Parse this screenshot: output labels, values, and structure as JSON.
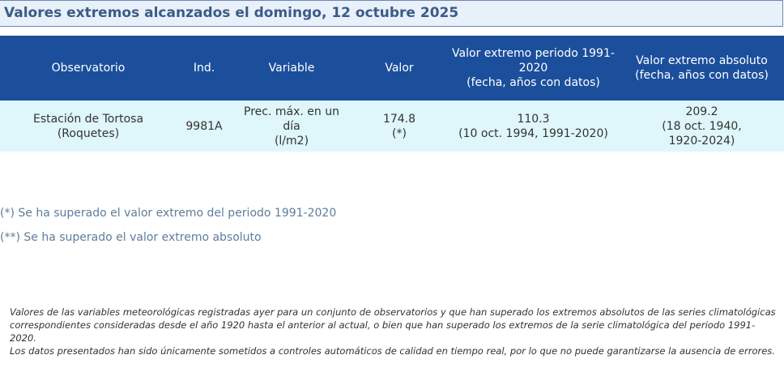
{
  "title": "Valores extremos alcanzados el domingo, 12 octubre 2025",
  "table": {
    "headers": [
      "Observatorio",
      "Ind.",
      "Variable",
      "Valor",
      "Valor extremo periodo 1991-2020\n(fecha, años con datos)",
      "Valor extremo absoluto\n(fecha, años con datos)"
    ],
    "rows": [
      [
        "Estación de Tortosa\n(Roquetes)",
        "9981A",
        "Prec. máx. en un día\n(l/m2)",
        "174.8\n(*)",
        "110.3\n(10 oct. 1994, 1991-2020)",
        "209.2\n(18 oct. 1940, 1920-2024)"
      ]
    ]
  },
  "notes": [
    "(*) Se ha superado el valor extremo del periodo 1991-2020",
    "(**) Se ha superado el valor extremo absoluto"
  ],
  "disclaimer": [
    "Valores de las variables meteorológicas registradas ayer para un conjunto de observatorios y que han superado los extremos absolutos de las series climatológicas correspondientes consideradas desde el año 1920 hasta el anterior al actual, o bien que han superado los extremos de la serie climatológica del periodo 1991-2020.",
    "Los datos presentados han sido únicamente sometidos a controles automáticos de calidad en tiempo real, por lo que no puede garantizarse la ausencia de errores."
  ],
  "colors": {
    "header_bg": "#1b4f9c",
    "row_bg": "#dff6fb",
    "title_bg": "#e8f0fa",
    "title_text": "#3b5b85",
    "note_text": "#5d7d9c"
  }
}
